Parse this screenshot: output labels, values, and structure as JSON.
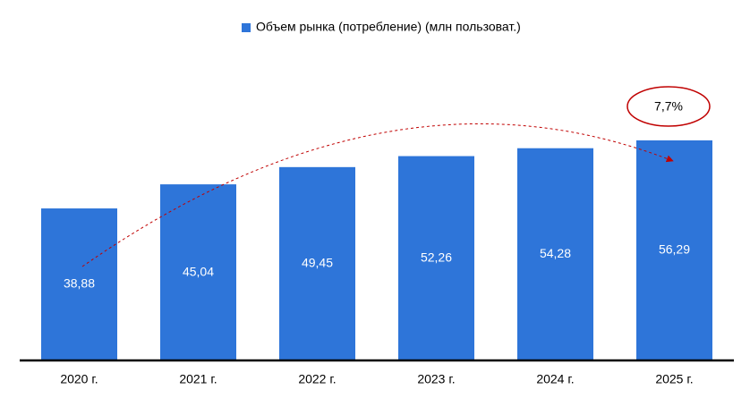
{
  "chart_data": {
    "type": "bar",
    "categories": [
      "2020 г.",
      "2021 г.",
      "2022 г.",
      "2023 г.",
      "2024 г.",
      "2025 г."
    ],
    "series": [
      {
        "name": "Объем рынка (потребление) (млн пользоват.)",
        "color": "#2e75d9",
        "values": [
          38.88,
          45.04,
          49.45,
          52.26,
          54.28,
          56.29
        ],
        "value_labels": [
          "38,88",
          "45,04",
          "49,45",
          "52,26",
          "54,28",
          "56,29"
        ]
      }
    ],
    "ylim": [
      0,
      70
    ],
    "annotation": "7,7%",
    "legend": "top"
  }
}
